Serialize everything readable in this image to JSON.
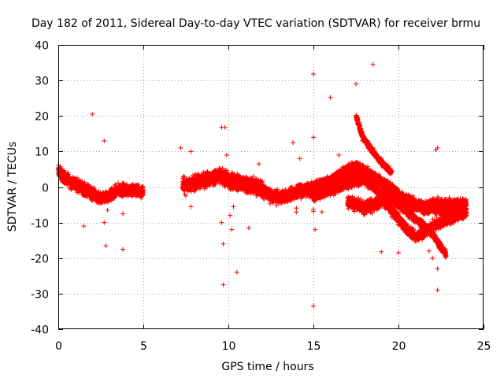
{
  "chart_data": {
    "type": "scatter",
    "title": "Day 182 of 2011, Sidereal Day-to-day VTEC variation (SDTVAR) for receiver brmu",
    "xlabel": "GPS time / hours",
    "ylabel": "SDTVAR / TECUs",
    "xlim": [
      0,
      25
    ],
    "ylim": [
      -40,
      40
    ],
    "xticks": [
      0,
      5,
      10,
      15,
      20,
      25
    ],
    "yticks": [
      -40,
      -30,
      -20,
      -10,
      0,
      10,
      20,
      30,
      40
    ],
    "xtick_labels": [
      "0",
      "5",
      "10",
      "15",
      "20",
      "25"
    ],
    "ytick_labels": [
      "-40",
      "-30",
      "-20",
      "-10",
      "0",
      "10",
      "20",
      "30",
      "40"
    ],
    "grid": true,
    "marker": "+",
    "color": "#ff0000",
    "dense_bands": [
      {
        "name": "band-0-5h",
        "points": [
          [
            0,
            4.5
          ],
          [
            0.3,
            3
          ],
          [
            0.7,
            1.5
          ],
          [
            1,
            1
          ],
          [
            1.5,
            -0.5
          ],
          [
            2,
            -2
          ],
          [
            2.5,
            -3.5
          ],
          [
            3,
            -2.5
          ],
          [
            3.5,
            -1
          ],
          [
            4,
            -0.8
          ],
          [
            4.5,
            -1
          ],
          [
            5,
            -1.2
          ]
        ],
        "spread": 2.5
      },
      {
        "name": "band-7-10h",
        "points": [
          [
            7.3,
            0.5
          ],
          [
            8,
            1
          ],
          [
            8.5,
            2
          ],
          [
            9,
            2.5
          ],
          [
            9.5,
            3
          ],
          [
            10,
            2
          ],
          [
            10.5,
            1.5
          ],
          [
            11,
            1
          ],
          [
            11.5,
            0.5
          ],
          [
            12,
            0
          ]
        ],
        "spread": 3
      },
      {
        "name": "band-10-15h",
        "points": [
          [
            10,
            1
          ],
          [
            11,
            0.5
          ],
          [
            12,
            -1
          ],
          [
            12.5,
            -2.5
          ],
          [
            13,
            -3
          ],
          [
            13.5,
            -2.5
          ],
          [
            14,
            -1.5
          ],
          [
            14.5,
            -1
          ],
          [
            15,
            -1.5
          ],
          [
            15.5,
            -0.5
          ],
          [
            16,
            0.5
          ],
          [
            16.5,
            1.5
          ],
          [
            17,
            2.5
          ],
          [
            17.5,
            3.5
          ],
          [
            18,
            3
          ]
        ],
        "spread": 2.5
      },
      {
        "name": "band-14-19h-upper",
        "points": [
          [
            14,
            -1
          ],
          [
            15,
            0
          ],
          [
            16,
            2
          ],
          [
            16.5,
            3
          ],
          [
            17,
            5
          ],
          [
            17.5,
            6
          ],
          [
            18,
            4.5
          ],
          [
            18.5,
            3
          ],
          [
            19,
            1.5
          ],
          [
            19.5,
            0
          ],
          [
            20,
            -2
          ],
          [
            20.5,
            -4
          ],
          [
            21,
            -5
          ],
          [
            21.5,
            -5.5
          ],
          [
            22,
            -6
          ],
          [
            22.5,
            -6.5
          ],
          [
            23,
            -7
          ],
          [
            23.5,
            -7
          ],
          [
            24,
            -6.5
          ]
        ],
        "spread": 2
      },
      {
        "name": "band-15-24h-lower",
        "points": [
          [
            15,
            -3
          ],
          [
            15.5,
            -1.5
          ],
          [
            16,
            -1
          ],
          [
            16.5,
            0
          ],
          [
            17,
            1
          ],
          [
            17.5,
            1.5
          ],
          [
            18,
            2
          ],
          [
            18.5,
            0.5
          ],
          [
            19,
            -3
          ],
          [
            19.5,
            -6
          ],
          [
            20,
            -9
          ],
          [
            20.5,
            -12
          ],
          [
            21,
            -14
          ],
          [
            21.5,
            -13
          ],
          [
            22,
            -11
          ],
          [
            22.5,
            -10
          ],
          [
            23,
            -9
          ],
          [
            23.5,
            -8
          ],
          [
            24,
            -7
          ]
        ],
        "spread": 2
      },
      {
        "name": "band-17-24h-mid",
        "points": [
          [
            17,
            -4
          ],
          [
            18,
            -6
          ],
          [
            18.5,
            -5
          ],
          [
            19,
            -4
          ],
          [
            19.5,
            -3
          ],
          [
            20,
            -3
          ],
          [
            20.5,
            -4
          ],
          [
            21,
            -5
          ],
          [
            21.5,
            -6
          ],
          [
            22,
            -5
          ],
          [
            23,
            -5
          ],
          [
            24,
            -5
          ]
        ],
        "spread": 2.5
      },
      {
        "name": "band-19-22h",
        "points": [
          [
            19,
            -1
          ],
          [
            20,
            -5
          ],
          [
            21,
            -9
          ],
          [
            22,
            -13
          ],
          [
            22.5,
            -17
          ],
          [
            22.8,
            -19
          ]
        ],
        "spread": 1.5
      },
      {
        "name": "band-17.5-19h-spike",
        "points": [
          [
            17.5,
            20
          ],
          [
            17.7,
            17
          ],
          [
            17.9,
            14
          ],
          [
            18.2,
            12
          ],
          [
            18.5,
            10
          ],
          [
            18.8,
            8
          ],
          [
            19.2,
            6
          ],
          [
            19.6,
            4
          ]
        ],
        "spread": 1.2
      }
    ],
    "outliers": [
      [
        2,
        20.5
      ],
      [
        2.7,
        13
      ],
      [
        2.8,
        -16.5
      ],
      [
        3.8,
        -17.5
      ],
      [
        2.7,
        -10
      ],
      [
        1.5,
        -11
      ],
      [
        3.8,
        -7.5
      ],
      [
        2.9,
        -6.5
      ],
      [
        9.6,
        16.8
      ],
      [
        9.8,
        16.8
      ],
      [
        9.7,
        -16
      ],
      [
        9.7,
        -27.5
      ],
      [
        10.5,
        -24
      ],
      [
        9.6,
        -10
      ],
      [
        10.2,
        -12
      ],
      [
        11.2,
        -11.5
      ],
      [
        10.3,
        -5.5
      ],
      [
        10.1,
        -8
      ],
      [
        7.2,
        11
      ],
      [
        7.8,
        10
      ],
      [
        7.8,
        -5.5
      ],
      [
        7.5,
        -2.5
      ],
      [
        9.9,
        9
      ],
      [
        11.8,
        6.5
      ],
      [
        15,
        31.8
      ],
      [
        18.5,
        34.5
      ],
      [
        16,
        25.2
      ],
      [
        17.5,
        29
      ],
      [
        15,
        14
      ],
      [
        13.8,
        12.5
      ],
      [
        14.2,
        8
      ],
      [
        15.1,
        -12
      ],
      [
        15,
        -33.5
      ],
      [
        22.2,
        10.5
      ],
      [
        22.3,
        11
      ],
      [
        22.3,
        -23
      ],
      [
        22.3,
        -29
      ],
      [
        17.9,
        13
      ],
      [
        18.4,
        10.5
      ],
      [
        19,
        8
      ],
      [
        20,
        -18.5
      ],
      [
        22,
        -20
      ],
      [
        21.8,
        -18
      ],
      [
        16.5,
        9
      ],
      [
        15.5,
        -7
      ]
    ]
  }
}
